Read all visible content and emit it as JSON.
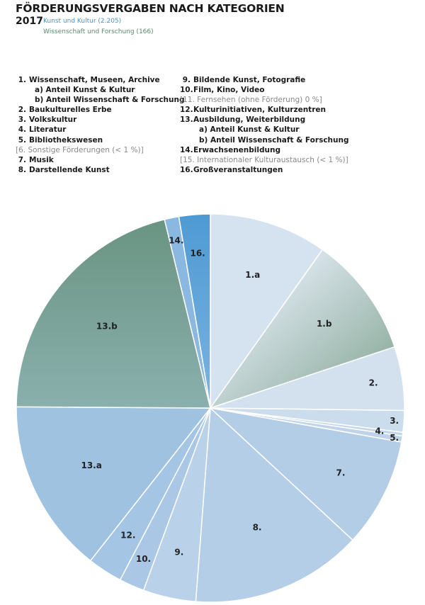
{
  "title": "FÖRDERUNGSVERGABEN NACH KATEGORIEN",
  "year": "2017",
  "subtitle_kunst": "Kunst und Kultur (2.205)",
  "subtitle_wissenschaft": "Wissenschaft und Forschung (166)",
  "legend_left": [
    {
      "num": "1.",
      "text": "Wissenschaft, Museen, Archive",
      "style": "bold"
    },
    {
      "num": "",
      "text": "a) Anteil Kunst & Kultur",
      "style": "indent"
    },
    {
      "num": "",
      "text": "b) Anteil Wissenschaft & Forschung",
      "style": "indent"
    },
    {
      "num": "2.",
      "text": "Baukulturelles Erbe",
      "style": "bold"
    },
    {
      "num": "3.",
      "text": "Volkskultur",
      "style": "bold"
    },
    {
      "num": "4.",
      "text": "Literatur",
      "style": "bold"
    },
    {
      "num": "5.",
      "text": "Bibliothekswesen",
      "style": "bold"
    },
    {
      "num": "",
      "text": "[6. Sonstige Förderungen (< 1 %)]",
      "style": "gray"
    },
    {
      "num": "7.",
      "text": "Musik",
      "style": "bold"
    },
    {
      "num": "8.",
      "text": "Darstellende Kunst",
      "style": "bold"
    }
  ],
  "legend_right": [
    {
      "num": "9.",
      "text": "Bildende Kunst, Fotografie",
      "style": "bold"
    },
    {
      "num": "10.",
      "text": "Film, Kino, Video",
      "style": "bold"
    },
    {
      "num": "",
      "text": "[11. Fernsehen (ohne Förderung) 0 %]",
      "style": "gray"
    },
    {
      "num": "12.",
      "text": "Kulturinitiativen, Kulturzentren",
      "style": "bold"
    },
    {
      "num": "13.",
      "text": "Ausbildung, Weiterbildung",
      "style": "bold"
    },
    {
      "num": "",
      "text": "a) Anteil Kunst & Kultur",
      "style": "indent"
    },
    {
      "num": "",
      "text": "b) Anteil Wissenschaft & Forschung",
      "style": "indent"
    },
    {
      "num": "14.",
      "text": "Erwachsenenbildung",
      "style": "bold"
    },
    {
      "num": "",
      "text": "[15. Internationaler Kulturaustausch (< 1 %)]",
      "style": "gray"
    },
    {
      "num": "16.",
      "text": "Großveranstaltungen",
      "style": "bold"
    }
  ],
  "chart_data": {
    "type": "pie",
    "start": "12 o'clock, clockwise",
    "unit": "percent (estimated)",
    "slices": [
      {
        "label": "1.a",
        "value": 9.8,
        "color": "#d5e2ef"
      },
      {
        "label": "1.b",
        "value": 10.1,
        "color": "#7fa28e",
        "gradient_from": "#dde7ef"
      },
      {
        "label": "2.",
        "value": 5.3,
        "color": "#d3e0ee"
      },
      {
        "label": "3.",
        "value": 1.8,
        "color": "#cbdcec"
      },
      {
        "label": "4.",
        "value": 0.3,
        "color": "#c3d7ea"
      },
      {
        "label": "5.",
        "value": 0.5,
        "color": "#bfd4ea"
      },
      {
        "label": "7.",
        "value": 9.1,
        "color": "#b4cde6"
      },
      {
        "label": "8.",
        "value": 14.3,
        "color": "#b5cee7"
      },
      {
        "label": "9.",
        "value": 4.4,
        "color": "#b9d2ea"
      },
      {
        "label": "10.",
        "value": 2.1,
        "color": "#aac8e5"
      },
      {
        "label": "12.",
        "value": 2.9,
        "color": "#a4c5e4"
      },
      {
        "label": "13.a",
        "value": 14.5,
        "color": "#9fc2e1"
      },
      {
        "label": "13.b",
        "value": 21.1,
        "color": "#8ab0ad",
        "gradient_from": "#6a9482"
      },
      {
        "label": "14.",
        "value": 1.2,
        "color": "#8bb8e0"
      },
      {
        "label": "16.",
        "value": 2.6,
        "color": "#4f9ad4",
        "gradient_to": "#7ab3e0"
      }
    ]
  }
}
